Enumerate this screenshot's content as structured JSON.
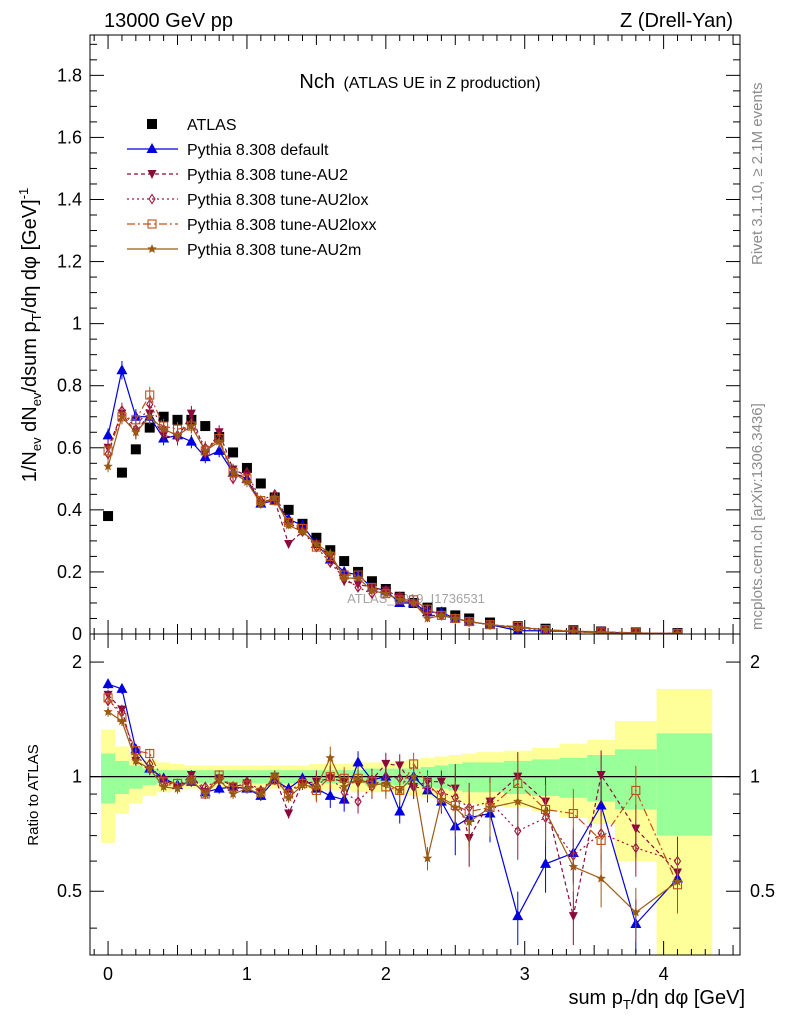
{
  "header": {
    "energy_label": "13000 GeV pp",
    "process_label": "Z (Drell-Yan)",
    "side_label_top": "Rivet 3.1.10, ≥ 2.1M events",
    "side_label_bottom": "mcplots.cern.ch [arXiv:1306.3436]",
    "watermark": "ATLAS_2019_I1736531"
  },
  "colors": {
    "atlas": "#000000",
    "default": "#0000e0",
    "au2": "#8b0a3c",
    "au2lox": "#a0153c",
    "au2loxx": "#c0501a",
    "au2m": "#9a5a14",
    "band_yellow": "#ffff99",
    "band_green": "#99ff99"
  },
  "chart_data": [
    {
      "type": "line",
      "panel": "main",
      "title": "Nch",
      "subtitle": "(ATLAS UE in Z production)",
      "ylabel": "1/N_ev dN_ev/dsum p_T/dη dφ [GeV]^-1",
      "xlim": [
        -0.13,
        4.55
      ],
      "ylim": [
        0,
        1.93
      ],
      "yticks": [
        0,
        0.2,
        0.4,
        0.6,
        0.8,
        1,
        1.2,
        1.4,
        1.6,
        1.8
      ],
      "ytick_labels": [
        "0",
        "0.2",
        "0.4",
        "0.6",
        "0.8",
        "1",
        "1.2",
        "1.4",
        "1.6",
        "1.8"
      ],
      "legend_position": "top-left",
      "x": [
        0,
        0.1,
        0.2,
        0.3,
        0.4,
        0.5,
        0.6,
        0.7,
        0.8,
        0.9,
        1.0,
        1.1,
        1.2,
        1.3,
        1.4,
        1.5,
        1.6,
        1.7,
        1.8,
        1.9,
        2.0,
        2.1,
        2.2,
        2.3,
        2.4,
        2.5,
        2.6,
        2.75,
        2.95,
        3.15,
        3.35,
        3.55,
        3.8,
        4.1
      ],
      "series": [
        {
          "name": "ATLAS",
          "key": "atlas",
          "marker": "square",
          "values": [
            0.38,
            0.52,
            0.595,
            0.665,
            0.7,
            0.69,
            0.69,
            0.67,
            0.635,
            0.585,
            0.535,
            0.485,
            0.44,
            0.4,
            0.355,
            0.31,
            0.27,
            0.235,
            0.2,
            0.17,
            0.145,
            0.12,
            0.1,
            0.085,
            0.07,
            0.06,
            0.05,
            0.037,
            0.025,
            0.017,
            0.012,
            0.008,
            0.005,
            0.003
          ]
        },
        {
          "name": "Pythia 8.308 default",
          "key": "default",
          "marker": "triangle-up",
          "values": [
            0.64,
            0.85,
            0.7,
            0.7,
            0.63,
            0.64,
            0.62,
            0.57,
            0.59,
            0.52,
            0.5,
            0.42,
            0.43,
            0.37,
            0.35,
            0.29,
            0.24,
            0.2,
            0.19,
            0.15,
            0.14,
            0.1,
            0.1,
            0.07,
            0.07,
            0.05,
            0.04,
            0.03,
            0.011,
            0.01,
            0.008,
            0.007,
            0.002,
            0.0017
          ]
        },
        {
          "name": "Pythia 8.308 tune-AU2",
          "key": "au2",
          "marker": "triangle-down",
          "values": [
            0.6,
            0.71,
            0.65,
            0.71,
            0.64,
            0.63,
            0.71,
            0.58,
            0.65,
            0.53,
            0.51,
            0.42,
            0.43,
            0.29,
            0.33,
            0.29,
            0.25,
            0.17,
            0.16,
            0.15,
            0.14,
            0.12,
            0.1,
            0.06,
            0.06,
            0.05,
            0.04,
            0.03,
            0.02,
            0.015,
            0.005,
            0.007,
            0.003,
            0.002
          ]
        },
        {
          "name": "Pythia 8.308 tune-AU2lox",
          "key": "au2lox",
          "marker": "diamond-open",
          "values": [
            0.58,
            0.72,
            0.66,
            0.74,
            0.66,
            0.64,
            0.68,
            0.6,
            0.63,
            0.5,
            0.52,
            0.43,
            0.45,
            0.36,
            0.33,
            0.28,
            0.23,
            0.18,
            0.15,
            0.13,
            0.14,
            0.12,
            0.1,
            0.08,
            0.06,
            0.05,
            0.04,
            0.03,
            0.018,
            0.013,
            0.009,
            0.006,
            0.003,
            0.002
          ]
        },
        {
          "name": "Pythia 8.308 tune-AU2loxx",
          "key": "au2loxx",
          "marker": "square-open",
          "values": [
            0.59,
            0.7,
            0.69,
            0.77,
            0.67,
            0.66,
            0.67,
            0.59,
            0.63,
            0.52,
            0.5,
            0.43,
            0.43,
            0.36,
            0.34,
            0.28,
            0.25,
            0.19,
            0.19,
            0.15,
            0.13,
            0.11,
            0.11,
            0.08,
            0.06,
            0.05,
            0.04,
            0.03,
            0.024,
            0.014,
            0.01,
            0.007,
            0.004,
            0.0017
          ]
        },
        {
          "name": "Pythia 8.308 tune-AU2m",
          "key": "au2m",
          "marker": "star",
          "values": [
            0.54,
            0.7,
            0.65,
            0.7,
            0.66,
            0.64,
            0.67,
            0.59,
            0.62,
            0.52,
            0.49,
            0.42,
            0.44,
            0.35,
            0.33,
            0.29,
            0.26,
            0.18,
            0.18,
            0.14,
            0.13,
            0.11,
            0.1,
            0.05,
            0.06,
            0.05,
            0.04,
            0.03,
            0.021,
            0.014,
            0.007,
            0.004,
            0.002,
            0.0016
          ]
        }
      ]
    },
    {
      "type": "line",
      "panel": "ratio",
      "ylabel": "Ratio to ATLAS",
      "xlabel": "sum p_T/dη dφ [GeV]",
      "xlim": [
        -0.13,
        4.55
      ],
      "ylim": [
        0.34,
        2.37
      ],
      "xticks": [
        0,
        1,
        2,
        3,
        4
      ],
      "xtick_labels": [
        "0",
        "1",
        "2",
        "3",
        "4"
      ],
      "yticks": [
        0.5,
        1,
        2
      ],
      "ytick_labels": [
        "0.5",
        "1",
        "2"
      ],
      "reference_line": 1,
      "bands": {
        "edges": [
          -0.05,
          0.05,
          0.15,
          0.25,
          0.35,
          0.45,
          0.55,
          0.65,
          0.75,
          0.85,
          0.95,
          1.05,
          1.15,
          1.25,
          1.35,
          1.45,
          1.55,
          1.65,
          1.75,
          1.85,
          1.95,
          2.05,
          2.15,
          2.25,
          2.35,
          2.45,
          2.55,
          2.65,
          2.85,
          3.05,
          3.25,
          3.45,
          3.65,
          3.95,
          4.35
        ],
        "yellow": [
          0.33,
          0.2,
          0.15,
          0.11,
          0.09,
          0.08,
          0.07,
          0.07,
          0.07,
          0.07,
          0.07,
          0.07,
          0.07,
          0.07,
          0.07,
          0.08,
          0.08,
          0.08,
          0.09,
          0.09,
          0.09,
          0.1,
          0.11,
          0.12,
          0.13,
          0.14,
          0.15,
          0.16,
          0.17,
          0.19,
          0.22,
          0.25,
          0.4,
          0.7,
          0.45
        ],
        "green": [
          0.15,
          0.1,
          0.07,
          0.05,
          0.04,
          0.04,
          0.04,
          0.04,
          0.04,
          0.04,
          0.04,
          0.04,
          0.04,
          0.04,
          0.04,
          0.04,
          0.04,
          0.04,
          0.04,
          0.05,
          0.05,
          0.05,
          0.05,
          0.06,
          0.07,
          0.08,
          0.09,
          0.09,
          0.1,
          0.11,
          0.12,
          0.14,
          0.18,
          0.3,
          0.22
        ]
      },
      "x": [
        0,
        0.1,
        0.2,
        0.3,
        0.4,
        0.5,
        0.6,
        0.7,
        0.8,
        0.9,
        1.0,
        1.1,
        1.2,
        1.3,
        1.4,
        1.5,
        1.6,
        1.7,
        1.8,
        1.9,
        2.0,
        2.1,
        2.2,
        2.3,
        2.4,
        2.5,
        2.6,
        2.75,
        2.95,
        3.15,
        3.35,
        3.55,
        3.8,
        4.1
      ],
      "series": [
        {
          "name": "Pythia 8.308 default",
          "key": "default",
          "marker": "triangle-up",
          "values": [
            1.75,
            1.7,
            1.18,
            1.05,
            0.99,
            0.95,
            0.97,
            0.91,
            0.93,
            0.94,
            0.93,
            0.89,
            0.98,
            0.93,
            0.99,
            0.93,
            0.89,
            0.87,
            1.09,
            0.98,
            1.0,
            0.81,
            1.0,
            0.92,
            0.86,
            0.74,
            0.78,
            0.8,
            0.43,
            0.59,
            0.63,
            0.84,
            0.41,
            0.54
          ]
        },
        {
          "name": "Pythia 8.308 tune-AU2",
          "key": "au2",
          "marker": "triangle-down",
          "values": [
            1.64,
            1.5,
            1.1,
            1.04,
            0.98,
            0.94,
            1.01,
            0.91,
            0.99,
            0.94,
            0.96,
            0.91,
            1.0,
            0.8,
            0.96,
            0.97,
            0.99,
            0.97,
            0.96,
            0.98,
            1.08,
            1.07,
            0.94,
            0.97,
            0.97,
            0.93,
            0.69,
            0.86,
            1.0,
            0.86,
            0.43,
            1.01,
            0.73,
            0.56
          ]
        },
        {
          "name": "Pythia 8.308 tune-AU2lox",
          "key": "au2lox",
          "marker": "diamond-open",
          "values": [
            1.58,
            1.48,
            1.12,
            1.08,
            0.96,
            0.94,
            0.98,
            0.94,
            0.98,
            0.91,
            0.97,
            0.92,
            1.0,
            0.91,
            0.97,
            0.95,
            1.0,
            0.91,
            0.86,
            0.94,
            1.0,
            0.99,
            0.94,
            0.93,
            0.91,
            0.88,
            0.83,
            0.86,
            0.72,
            0.78,
            0.62,
            0.71,
            0.65,
            0.6
          ]
        },
        {
          "name": "Pythia 8.308 tune-AU2loxx",
          "key": "au2loxx",
          "marker": "square-open",
          "values": [
            1.61,
            1.43,
            1.17,
            1.15,
            0.97,
            0.96,
            0.98,
            0.9,
            1.01,
            0.94,
            0.95,
            0.91,
            0.98,
            0.9,
            0.96,
            0.92,
            1.0,
            0.99,
            0.99,
            0.97,
            0.94,
            0.92,
            1.08,
            0.96,
            0.88,
            0.84,
            0.81,
            0.83,
            0.96,
            0.82,
            0.8,
            0.68,
            0.92,
            0.52
          ]
        },
        {
          "name": "Pythia 8.308 tune-AU2m",
          "key": "au2m",
          "marker": "star",
          "values": [
            1.48,
            1.4,
            1.1,
            1.05,
            0.94,
            0.93,
            0.98,
            0.9,
            0.98,
            0.9,
            0.93,
            0.9,
            1.01,
            0.88,
            0.95,
            0.94,
            1.12,
            0.94,
            0.99,
            0.95,
            0.96,
            0.92,
            1.0,
            0.61,
            0.87,
            0.83,
            0.76,
            0.83,
            0.86,
            0.81,
            0.58,
            0.54,
            0.44,
            0.53
          ]
        }
      ]
    }
  ]
}
